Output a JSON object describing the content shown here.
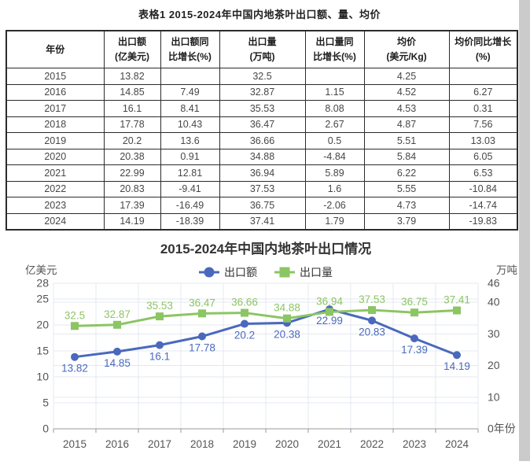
{
  "table_section": {
    "title": "表格1 2015-2024年中国内地茶叶出口额、量、均价",
    "headers": [
      {
        "line1": "年份",
        "line2": ""
      },
      {
        "line1": "出口额",
        "line2": "(亿美元)"
      },
      {
        "line1": "出口额同",
        "line2": "比增长(%)"
      },
      {
        "line1": "出口量",
        "line2": "(万吨)"
      },
      {
        "line1": "出口量同",
        "line2": "比增长(%)"
      },
      {
        "line1": "均价",
        "line2": "(美元/Kg)"
      },
      {
        "line1": "均价同比增长",
        "line2": "(%)"
      }
    ],
    "rows": [
      [
        "2015",
        "13.82",
        "",
        "32.5",
        "",
        "4.25",
        ""
      ],
      [
        "2016",
        "14.85",
        "7.49",
        "32.87",
        "1.15",
        "4.52",
        "6.27"
      ],
      [
        "2017",
        "16.1",
        "8.41",
        "35.53",
        "8.08",
        "4.53",
        "0.31"
      ],
      [
        "2018",
        "17.78",
        "10.43",
        "36.47",
        "2.67",
        "4.87",
        "7.56"
      ],
      [
        "2019",
        "20.2",
        "13.6",
        "36.66",
        "0.5",
        "5.51",
        "13.03"
      ],
      [
        "2020",
        "20.38",
        "0.91",
        "34.88",
        "-4.84",
        "5.84",
        "6.05"
      ],
      [
        "2021",
        "22.99",
        "12.81",
        "36.94",
        "5.89",
        "6.22",
        "6.53"
      ],
      [
        "2022",
        "20.83",
        "-9.41",
        "37.53",
        "1.6",
        "5.55",
        "-10.84"
      ],
      [
        "2023",
        "17.39",
        "-16.49",
        "36.75",
        "-2.06",
        "4.73",
        "-14.74"
      ],
      [
        "2024",
        "14.19",
        "-18.39",
        "37.41",
        "1.79",
        "3.79",
        "-19.83"
      ]
    ]
  },
  "chart_data": {
    "type": "line",
    "title": "2015-2024年中国内地茶叶出口情况",
    "categories": [
      "2015",
      "2016",
      "2017",
      "2018",
      "2019",
      "2020",
      "2021",
      "2022",
      "2023",
      "2024"
    ],
    "series": [
      {
        "name": "出口额",
        "axis": "left",
        "marker": "circle",
        "color": "#4a69bd",
        "values": [
          13.82,
          14.85,
          16.1,
          17.78,
          20.2,
          20.38,
          22.99,
          20.83,
          17.39,
          14.19
        ],
        "label_position": "below"
      },
      {
        "name": "出口量",
        "axis": "right",
        "marker": "square",
        "color": "#8cc564",
        "values": [
          32.5,
          32.87,
          35.53,
          36.47,
          36.66,
          34.88,
          36.94,
          37.53,
          36.75,
          37.41
        ],
        "label_position": "above"
      }
    ],
    "left_axis": {
      "unit": "亿美元",
      "ticks": [
        0,
        5,
        10,
        15,
        20,
        25,
        28
      ],
      "max": 28
    },
    "right_axis": {
      "unit": "万吨",
      "ticks": [
        0,
        10,
        20,
        30,
        40,
        46
      ],
      "max": 46
    },
    "x_axis_name": "年份",
    "legend_position": "top",
    "grid": true,
    "grid_color": "#e3e8f0",
    "axis_line_color": "#9a9a9a",
    "tick_label_color": "#555555",
    "title_color": "#333333"
  },
  "scrollbar": {
    "color": "#cbcbcb"
  }
}
